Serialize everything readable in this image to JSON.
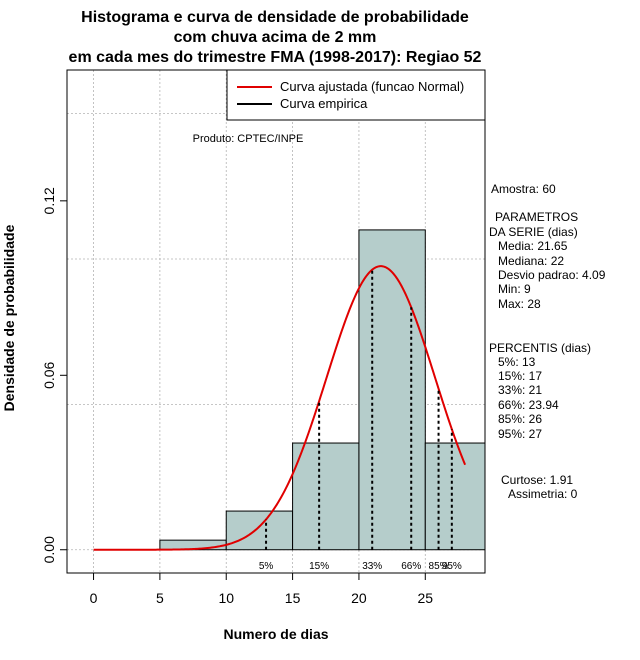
{
  "chart_data": {
    "type": "bar",
    "title_lines": [
      "Histograma e curva de densidade de probabilidade",
      "com chuva acima de 2 mm",
      "em cada mes do trimestre FMA (1998-2017): Regiao 52"
    ],
    "xlabel": "Numero de dias",
    "ylabel": "Densidade de probabilidade",
    "xlim": [
      -2,
      29.5
    ],
    "ylim": [
      -0.008,
      0.165
    ],
    "x_ticks": [
      "0",
      "5",
      "10",
      "15",
      "20",
      "25"
    ],
    "x_tick_values": [
      0,
      5,
      10,
      15,
      20,
      25
    ],
    "y_ticks": [
      "0.00",
      "0.06",
      "0.12"
    ],
    "y_tick_values": [
      0,
      0.06,
      0.12
    ],
    "x_grid": [
      0,
      5,
      10,
      15,
      20,
      25
    ],
    "y_grid": [
      0,
      0.05,
      0.1,
      0.15
    ],
    "bins": [
      {
        "start": 0,
        "end": 5,
        "density": 0.0
      },
      {
        "start": 5,
        "end": 10,
        "density": 0.0033
      },
      {
        "start": 10,
        "end": 15,
        "density": 0.0133
      },
      {
        "start": 15,
        "end": 20,
        "density": 0.0367
      },
      {
        "start": 20,
        "end": 25,
        "density": 0.11
      },
      {
        "start": 25,
        "end": 29.5,
        "density": 0.0367
      }
    ],
    "normal_curve": {
      "mean": 21.65,
      "sd": 4.09,
      "x_from": 0,
      "x_to": 28
    },
    "percentiles": [
      {
        "label": "5%",
        "x": 13
      },
      {
        "label": "15%",
        "x": 17
      },
      {
        "label": "33%",
        "x": 21
      },
      {
        "label": "66%",
        "x": 23.94
      },
      {
        "label": "85%",
        "x": 26
      },
      {
        "label": "95%",
        "x": 27
      }
    ],
    "legend": {
      "placement": "top-right",
      "entries": [
        {
          "label": "Curva ajustada (funcao Normal)",
          "color": "#e00000"
        },
        {
          "label": "Curva empirica",
          "color": "#000000"
        }
      ]
    },
    "annotation": "Produto: CPTEC/INPE",
    "colors": {
      "bar_fill": "#b5cdcb",
      "curve": "#e00000",
      "grid": "#b4b4b4"
    }
  },
  "stats_panel": {
    "amostra": "Amostra: 60",
    "param_title_1": "PARAMETROS",
    "param_title_2": "DA SERIE (dias)",
    "media": "Media: 21.65",
    "mediana": "Mediana: 22",
    "desvio": "Desvio padrao: 4.09",
    "min": "Min: 9",
    "max": "Max: 28",
    "percentis_title": "PERCENTIS (dias)",
    "p5": "5%: 13",
    "p15": "15%: 17",
    "p33": "33%: 21",
    "p66": "66%: 23.94",
    "p85": "85%: 26",
    "p95": "95%: 27",
    "curtose": "Curtose: 1.91",
    "assimetria": "Assimetria: 0"
  }
}
